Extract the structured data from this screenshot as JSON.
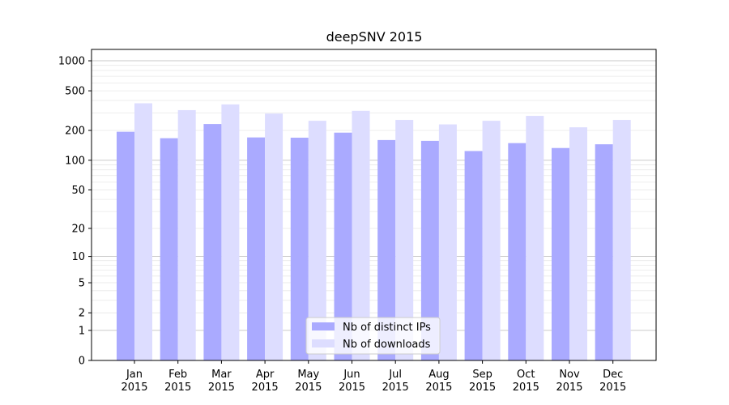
{
  "chart_data": {
    "type": "bar",
    "title": "deepSNV 2015",
    "xlabel": "",
    "ylabel": "",
    "yscale": "log1p",
    "ylim": [
      0,
      1300
    ],
    "y_ticks": [
      0,
      1,
      2,
      5,
      10,
      20,
      50,
      100,
      200,
      500,
      1000
    ],
    "y_tick_labels": [
      "0",
      "1",
      "2",
      "5",
      "10",
      "20",
      "50",
      "100",
      "200",
      "500",
      "1000"
    ],
    "categories": [
      [
        "Jan",
        "2015"
      ],
      [
        "Feb",
        "2015"
      ],
      [
        "Mar",
        "2015"
      ],
      [
        "Apr",
        "2015"
      ],
      [
        "May",
        "2015"
      ],
      [
        "Jun",
        "2015"
      ],
      [
        "Jul",
        "2015"
      ],
      [
        "Aug",
        "2015"
      ],
      [
        "Sep",
        "2015"
      ],
      [
        "Oct",
        "2015"
      ],
      [
        "Nov",
        "2015"
      ],
      [
        "Dec",
        "2015"
      ]
    ],
    "series": [
      {
        "name": "Nb of distinct IPs",
        "color": "#aaaaff",
        "values": [
          194,
          167,
          232,
          170,
          169,
          190,
          160,
          157,
          124,
          149,
          133,
          145
        ]
      },
      {
        "name": "Nb of downloads",
        "color": "#ddddff",
        "values": [
          375,
          320,
          365,
          295,
          250,
          315,
          255,
          230,
          250,
          280,
          215,
          255
        ]
      }
    ],
    "grid": true,
    "legend_position": "bottom-center"
  }
}
